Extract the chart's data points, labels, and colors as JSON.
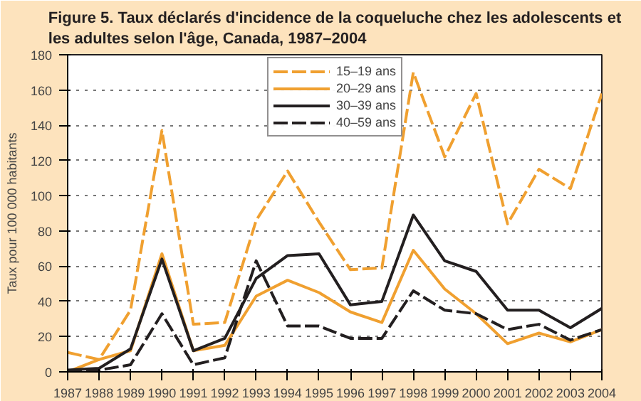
{
  "chart_data": {
    "type": "line",
    "title": "Figure 5. Taux déclarés d'incidence de la coqueluche chez les adolescents et\nles adultes selon l'âge, Canada, 1987–2004",
    "ylabel": "Taux pour 100 000 habitants",
    "categories": [
      "1987",
      "1988",
      "1989",
      "1990",
      "1991",
      "1992",
      "1993",
      "1994",
      "1995",
      "1996",
      "1997",
      "1998",
      "1999",
      "2000",
      "2001",
      "2002",
      "2003",
      "2004"
    ],
    "series": [
      {
        "name": "15–19 ans",
        "color": "#f0a030",
        "line_style": "dashed",
        "values": [
          11,
          7,
          35,
          137,
          27,
          28,
          86,
          114,
          85,
          58,
          59,
          170,
          122,
          158,
          84,
          115,
          104,
          158
        ]
      },
      {
        "name": "20–29 ans",
        "color": "#f0a030",
        "line_style": "solid",
        "values": [
          0,
          7,
          12,
          67,
          12,
          15,
          43,
          52,
          45,
          34,
          28,
          69,
          47,
          33,
          16,
          22,
          17,
          24
        ]
      },
      {
        "name": "30–39 ans",
        "color": "#231f20",
        "line_style": "solid",
        "values": [
          1,
          2,
          13,
          64,
          12,
          19,
          53,
          66,
          67,
          38,
          40,
          89,
          63,
          57,
          35,
          35,
          25,
          36
        ]
      },
      {
        "name": "40–59 ans",
        "color": "#231f20",
        "line_style": "dashed",
        "values": [
          0,
          1,
          4,
          33,
          4,
          8,
          63,
          26,
          26,
          19,
          19,
          46,
          35,
          33,
          24,
          27,
          18,
          24
        ]
      }
    ],
    "ylim": [
      0,
      180
    ],
    "yticks": [
      0,
      20,
      40,
      60,
      80,
      100,
      120,
      140,
      160,
      180
    ],
    "grid": "y",
    "legend": "top",
    "marker": "none"
  }
}
